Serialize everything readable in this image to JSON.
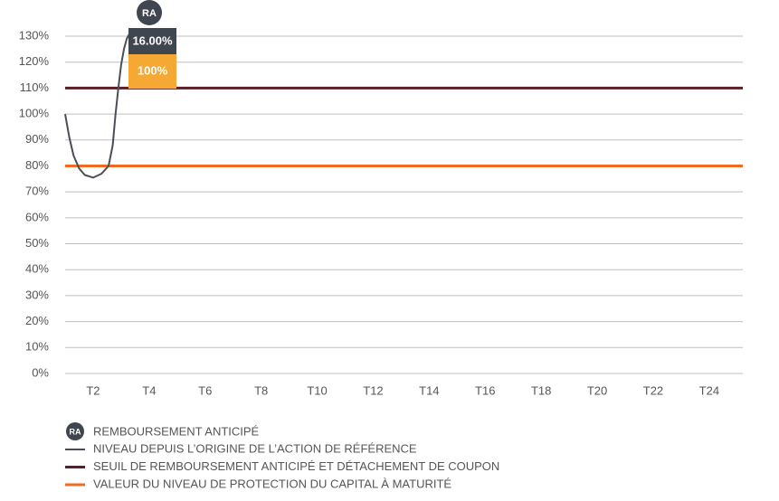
{
  "chart_data": {
    "type": "line",
    "ylim": [
      0,
      130
    ],
    "yticks": [
      {
        "value": 0,
        "label": "0%"
      },
      {
        "value": 10,
        "label": "10%"
      },
      {
        "value": 20,
        "label": "20%"
      },
      {
        "value": 30,
        "label": "30%"
      },
      {
        "value": 40,
        "label": "40%"
      },
      {
        "value": 50,
        "label": "50%"
      },
      {
        "value": 60,
        "label": "60%"
      },
      {
        "value": 70,
        "label": "70%"
      },
      {
        "value": 80,
        "label": "80%"
      },
      {
        "value": 90,
        "label": "90%"
      },
      {
        "value": 100,
        "label": "100%"
      },
      {
        "value": 110,
        "label": "110%"
      },
      {
        "value": 120,
        "label": "120%"
      },
      {
        "value": 130,
        "label": "130%"
      }
    ],
    "xlim": [
      1,
      25.2
    ],
    "xticks": [
      {
        "value": 2,
        "label": "T2"
      },
      {
        "value": 4,
        "label": "T4"
      },
      {
        "value": 6,
        "label": "T6"
      },
      {
        "value": 8,
        "label": "T8"
      },
      {
        "value": 10,
        "label": "T10"
      },
      {
        "value": 12,
        "label": "T12"
      },
      {
        "value": 14,
        "label": "T14"
      },
      {
        "value": 16,
        "label": "T16"
      },
      {
        "value": 18,
        "label": "T18"
      },
      {
        "value": 20,
        "label": "T20"
      },
      {
        "value": 22,
        "label": "T22"
      },
      {
        "value": 24,
        "label": "T24"
      }
    ],
    "grid": true,
    "series": [
      {
        "name": "NIVEAU DEPUIS L’ORIGINE DE L’ACTION DE RÉFÉRENCE",
        "color": "#4a4f57",
        "x": [
          1,
          1.15,
          1.3,
          1.5,
          1.7,
          2,
          2.3,
          2.55,
          2.7,
          2.8,
          2.9,
          3.0,
          3.1,
          3.2,
          3.3
        ],
        "values": [
          100,
          91,
          84,
          79,
          76.5,
          75.5,
          77,
          80,
          88,
          100,
          110,
          119,
          125,
          129,
          131
        ]
      }
    ],
    "hlines": [
      {
        "name": "SEUIL DE REMBOURSEMENT ANTICIPÉ ET DÉTACHEMENT DE COUPON",
        "value": 110,
        "color": "#5a1e23"
      },
      {
        "name": "VALEUR DU NIVEAU DE PROTECTION DU CAPITAL À MATURITÉ",
        "value": 80,
        "color": "#f26b21"
      }
    ],
    "annotation": {
      "marker": "RA",
      "label": "REMBOURSEMENT ANTICIPÉ",
      "coupon": "16.00%",
      "redemption": "100%"
    }
  }
}
